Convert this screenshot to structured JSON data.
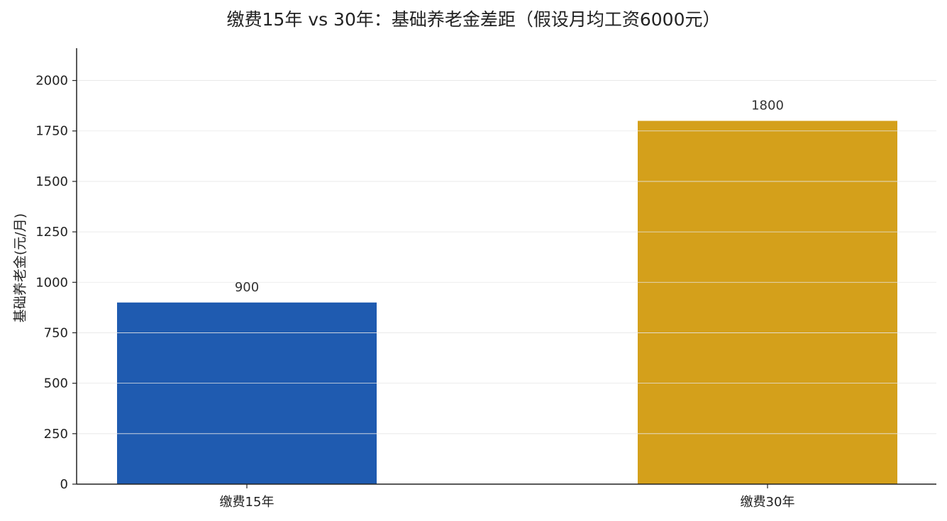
{
  "chart_data": {
    "type": "bar",
    "title": "缴费15年 vs 30年：基础养老金差距（假设月均工资6000元）",
    "xlabel": "",
    "ylabel": "基础养老金(元/月)",
    "categories": [
      "缴费15年",
      "缴费30年"
    ],
    "values": [
      900,
      1800
    ],
    "data_labels": [
      "900",
      "1800"
    ],
    "colors": [
      "#1f5bb0",
      "#d4a01b"
    ],
    "ylim": [
      0,
      2160
    ],
    "yticks": [
      0,
      250,
      500,
      750,
      1000,
      1250,
      1500,
      1750,
      2000
    ],
    "grid": true,
    "legend": "none"
  }
}
